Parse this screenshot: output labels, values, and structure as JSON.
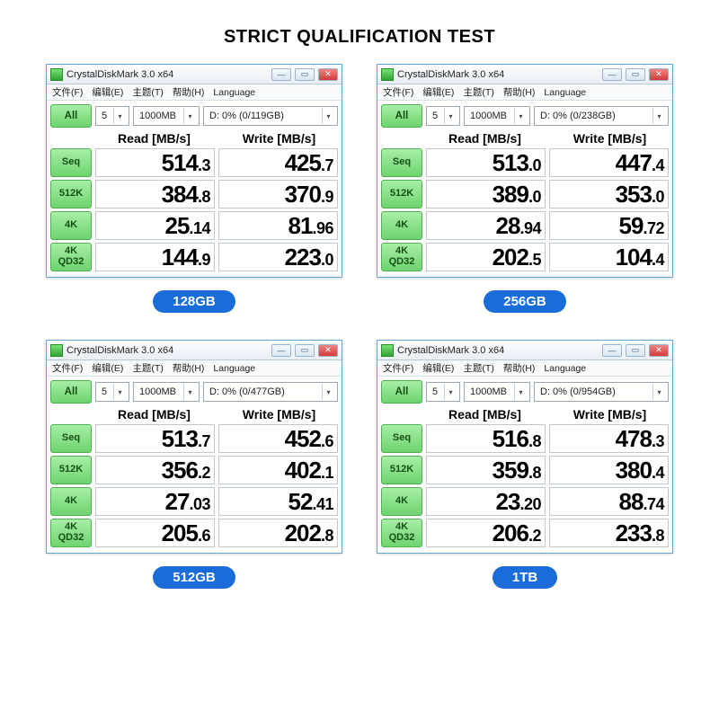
{
  "title": "STRICT QUALIFICATION TEST",
  "window_title": "CrystalDiskMark 3.0 x64",
  "menu": [
    "文件(F)",
    "编辑(E)",
    "主题(T)",
    "帮助(H)",
    "Language"
  ],
  "all_label": "All",
  "runs": "5",
  "size": "1000MB",
  "read_header": "Read [MB/s]",
  "write_header": "Write [MB/s]",
  "row_labels": [
    "Seq",
    "512K",
    "4K",
    "4K\nQD32"
  ],
  "panels": [
    {
      "badge": "128GB",
      "drive": "D: 0% (0/119GB)",
      "read": [
        "514.3",
        "384.8",
        "25.14",
        "144.9"
      ],
      "write": [
        "425.7",
        "370.9",
        "81.96",
        "223.0"
      ]
    },
    {
      "badge": "256GB",
      "drive": "D: 0% (0/238GB)",
      "read": [
        "513.0",
        "389.0",
        "28.94",
        "202.5"
      ],
      "write": [
        "447.4",
        "353.0",
        "59.72",
        "104.4"
      ]
    },
    {
      "badge": "512GB",
      "drive": "D: 0% (0/477GB)",
      "read": [
        "513.7",
        "356.2",
        "27.03",
        "205.6"
      ],
      "write": [
        "452.6",
        "402.1",
        "52.41",
        "202.8"
      ]
    },
    {
      "badge": "1TB",
      "drive": "D: 0% (0/954GB)",
      "read": [
        "516.8",
        "359.8",
        "23.20",
        "206.2"
      ],
      "write": [
        "478.3",
        "380.4",
        "88.74",
        "233.8"
      ]
    }
  ]
}
